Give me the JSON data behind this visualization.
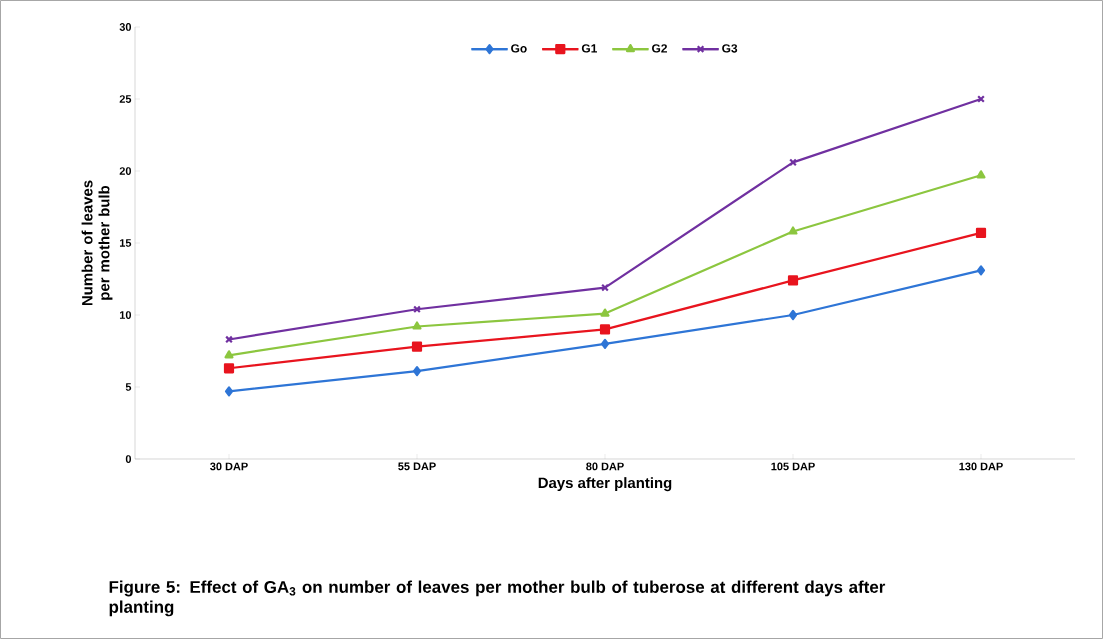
{
  "chart_data": {
    "type": "line",
    "title": "Figure 5: Effect of GA$_{3}$ on number of leaves per mother bulb of tuberose at different days after planting",
    "xlabel": "Days after planting",
    "ylabel": "Number of leaves per mother bulb",
    "categories": [
      "30 DAP",
      "55 DAP",
      "80 DAP",
      "105 DAP",
      "130 DAP"
    ],
    "series": [
      {
        "name": "Go",
        "color": "#2e75d6",
        "marker": "diamond",
        "values": [
          4.7,
          6.1,
          8.0,
          10.0,
          13.1
        ]
      },
      {
        "name": "G1",
        "color": "#e8141e",
        "marker": "square",
        "values": [
          6.3,
          7.8,
          9.0,
          12.4,
          15.7
        ]
      },
      {
        "name": "G2",
        "color": "#8cc63f",
        "marker": "triangle",
        "values": [
          7.2,
          9.2,
          10.1,
          15.8,
          19.7
        ]
      },
      {
        "name": "G3",
        "color": "#7030a0",
        "marker": "cross",
        "values": [
          8.3,
          10.4,
          11.9,
          20.6,
          25.0
        ]
      }
    ],
    "ylim": [
      0,
      30
    ],
    "yticks": [
      0,
      5,
      10,
      15,
      20,
      25,
      30
    ],
    "grid": false,
    "legend": "top"
  }
}
